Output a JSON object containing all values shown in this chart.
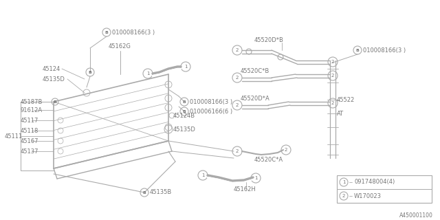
{
  "bg_color": "#ffffff",
  "line_color": "#aaaaaa",
  "text_color": "#777777",
  "diagram_id": "A450001100",
  "legend": [
    {
      "symbol": "1",
      "text": "091748004(4)"
    },
    {
      "symbol": "2",
      "text": "W170023"
    }
  ]
}
